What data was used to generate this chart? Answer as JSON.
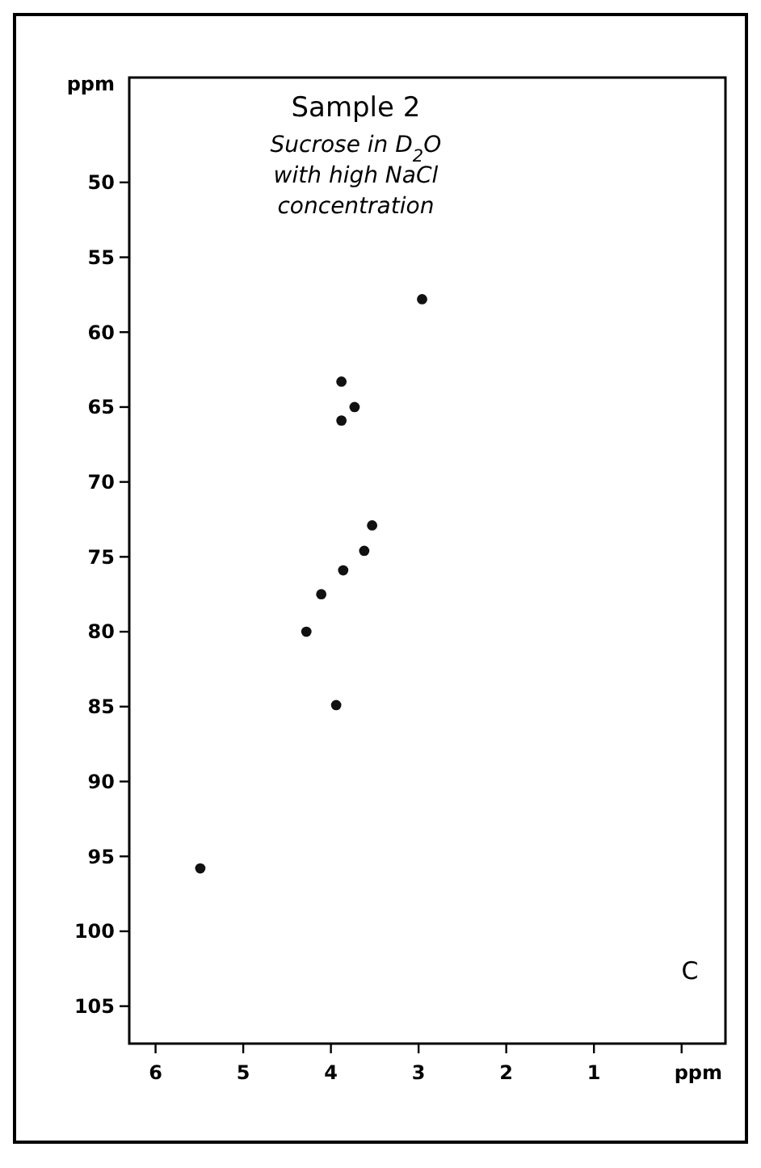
{
  "chart_data": {
    "type": "scatter",
    "title": "Sample 2",
    "subtitle": "Sucrose in D$_{2}$O with high NaCl concentration",
    "xlabel": "ppm",
    "ylabel": "ppm",
    "annotations": [
      "C"
    ],
    "x": [
      2.96,
      3.88,
      3.73,
      3.88,
      3.53,
      3.62,
      3.86,
      4.11,
      4.28,
      3.94,
      5.49
    ],
    "values": [
      57.8,
      63.3,
      65.0,
      65.9,
      72.9,
      74.6,
      75.9,
      77.5,
      80.0,
      84.9,
      95.8
    ],
    "color": "#111111",
    "marker": "circle",
    "xlim": [
      6.3,
      -0.5
    ],
    "xticks": [
      6,
      5,
      4,
      3,
      2,
      1,
      {
        "value": 0,
        "label": null
      }
    ],
    "ylim": [
      107.5,
      43
    ],
    "yticks": [
      50,
      55,
      60,
      65,
      70,
      75,
      80,
      85,
      90,
      95,
      100,
      105
    ]
  }
}
